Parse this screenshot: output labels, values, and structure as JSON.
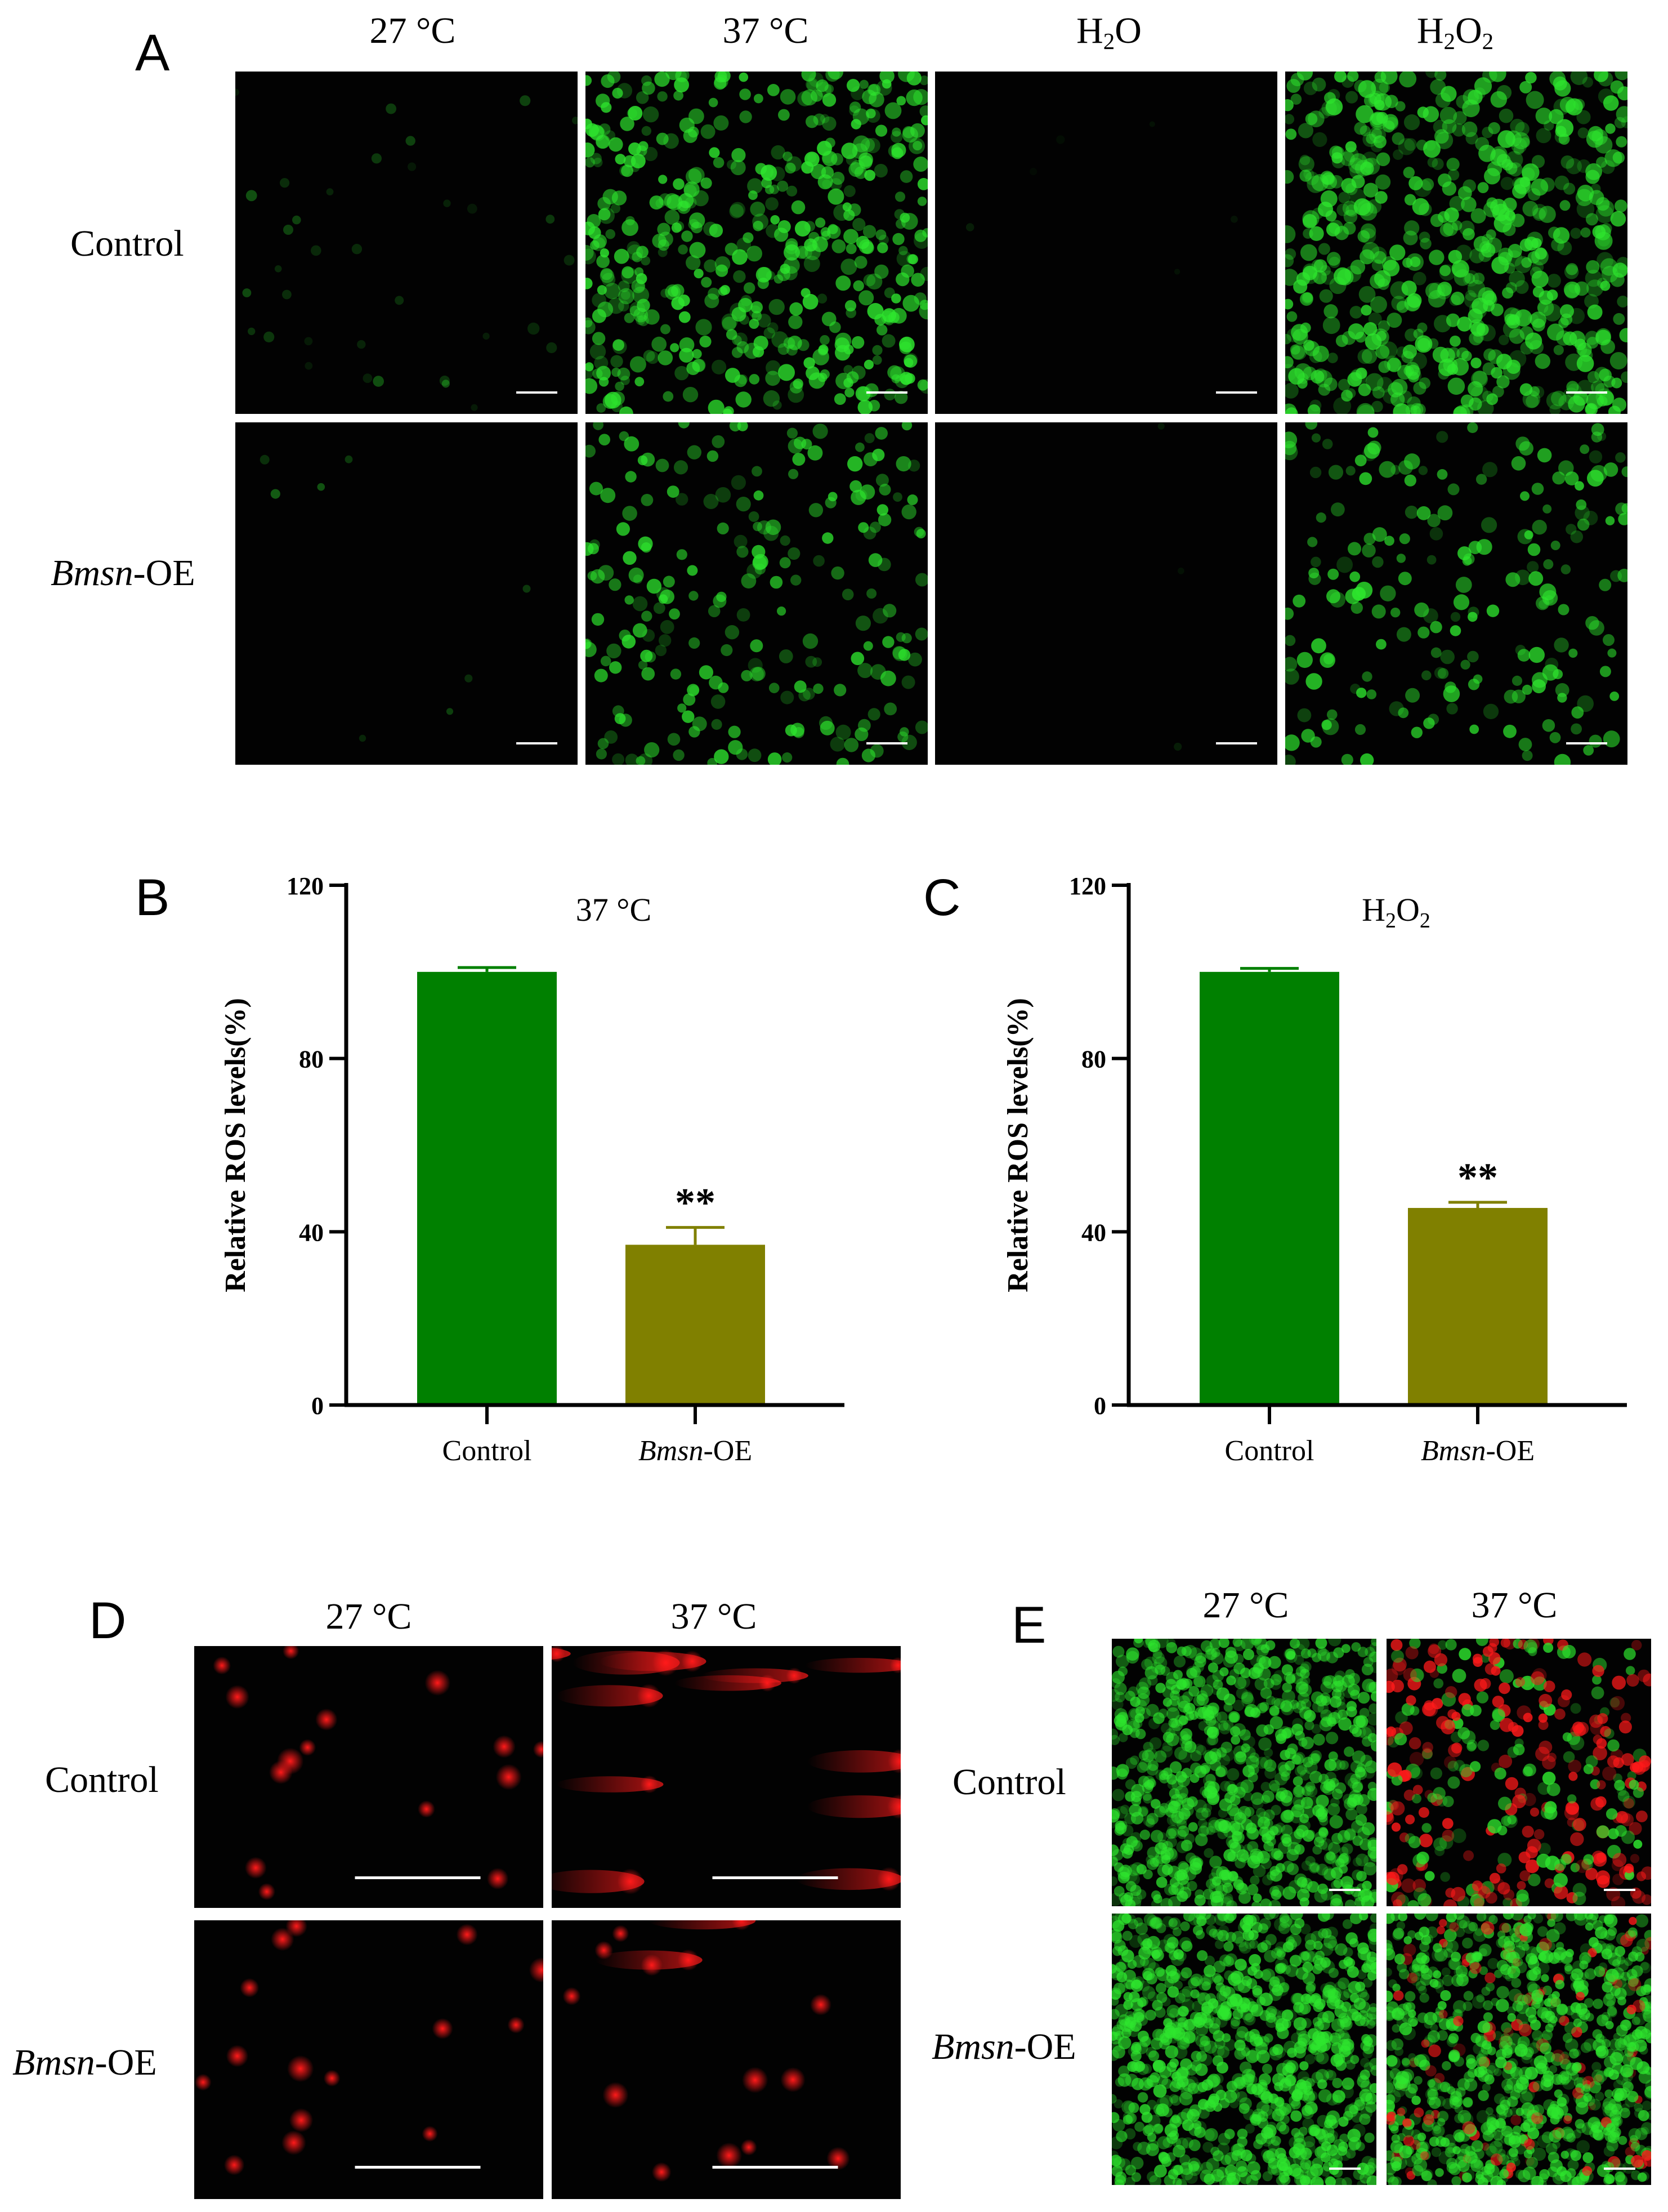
{
  "panels": {
    "A": {
      "letter": "A",
      "columns": [
        {
          "base": "27 °C"
        },
        {
          "base": "37 °C"
        },
        {
          "base": "H",
          "sub1": "2",
          "mid": "O"
        },
        {
          "base": "H",
          "sub1": "2",
          "mid": "O",
          "sub2": "2"
        }
      ],
      "rows": [
        {
          "label": "Control"
        },
        {
          "label_italic": "Bmsn",
          "label_rest": "-OE"
        }
      ]
    },
    "D": {
      "letter": "D",
      "columns": [
        {
          "label": "27 °C"
        },
        {
          "label": "37 °C"
        }
      ],
      "rows": [
        {
          "label": "Control"
        },
        {
          "label_italic": "Bmsn",
          "label_rest": "-OE"
        }
      ]
    },
    "E": {
      "letter": "E",
      "columns": [
        {
          "label": "27 °C"
        },
        {
          "label": "37 °C"
        }
      ],
      "rows": [
        {
          "label": "Control"
        },
        {
          "label_italic": "Bmsn",
          "label_rest": "-OE"
        }
      ]
    }
  },
  "chart_data": [
    {
      "panel": "B",
      "type": "bar",
      "title": "37 °C",
      "ylabel": "Relative ROS levels(%)",
      "categories": [
        "Control",
        "Bmsn-OE"
      ],
      "category_italic_part": [
        "",
        "Bmsn"
      ],
      "values": [
        100,
        37
      ],
      "errors": [
        1,
        4
      ],
      "ylim": [
        0,
        120
      ],
      "yticks": [
        0,
        40,
        80,
        120
      ],
      "colors": [
        "#008000",
        "#808000"
      ],
      "annotations": [
        {
          "category": "Bmsn-OE",
          "text": "**"
        }
      ]
    },
    {
      "panel": "C",
      "type": "bar",
      "title": "H2O2",
      "ylabel": "Relative ROS levels(%)",
      "categories": [
        "Control",
        "Bmsn-OE"
      ],
      "category_italic_part": [
        "",
        "Bmsn"
      ],
      "values": [
        100,
        45.5
      ],
      "errors": [
        0.8,
        1.3
      ],
      "ylim": [
        0,
        120
      ],
      "yticks": [
        0,
        40,
        80,
        120
      ],
      "colors": [
        "#008000",
        "#808000"
      ],
      "annotations": [
        {
          "category": "Bmsn-OE",
          "text": "**"
        }
      ]
    }
  ],
  "colors": {
    "fluorescence_green": "#2ee62e",
    "comet_red": "#ff1a1a",
    "image_background": "#020202",
    "scale_bar": "#ffffff"
  }
}
